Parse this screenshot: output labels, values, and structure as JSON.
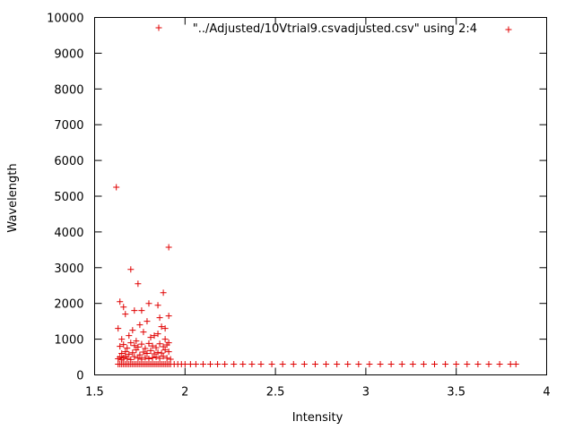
{
  "chart_data": {
    "type": "scatter",
    "title": "",
    "xlabel": "Intensity",
    "ylabel": "Wavelength",
    "xlim": [
      1.5,
      4
    ],
    "ylim": [
      0,
      10000
    ],
    "x_ticks": [
      "1.5",
      "2",
      "2.5",
      "3",
      "3.5",
      "4"
    ],
    "y_ticks": [
      "0",
      "1000",
      "2000",
      "3000",
      "4000",
      "5000",
      "6000",
      "7000",
      "8000",
      "9000",
      "10000"
    ],
    "grid": false,
    "legend_position": "top-right",
    "series": [
      {
        "name": "\"../Adjusted/10Vtrial9.csvadjusted.csv\" using 2:4",
        "color": "#e00000",
        "marker": "plus",
        "x": [
          1.63,
          1.64,
          1.65,
          1.66,
          1.67,
          1.68,
          1.69,
          1.7,
          1.71,
          1.72,
          1.73,
          1.74,
          1.75,
          1.76,
          1.77,
          1.78,
          1.79,
          1.8,
          1.81,
          1.82,
          1.83,
          1.84,
          1.85,
          1.86,
          1.87,
          1.88,
          1.89,
          1.9,
          1.91,
          1.92,
          1.94,
          1.96,
          1.98,
          2.0,
          2.03,
          2.06,
          2.1,
          2.14,
          2.18,
          2.22,
          2.27,
          2.32,
          2.37,
          2.42,
          2.48,
          2.54,
          2.6,
          2.66,
          2.72,
          2.78,
          2.84,
          2.9,
          2.96,
          3.02,
          3.08,
          3.14,
          3.2,
          3.26,
          3.32,
          3.38,
          3.44,
          3.5,
          3.56,
          3.62,
          3.68,
          3.74,
          3.8,
          3.83,
          1.63,
          1.64,
          1.65,
          1.66,
          1.67,
          1.68,
          1.7,
          1.72,
          1.74,
          1.76,
          1.78,
          1.8,
          1.82,
          1.84,
          1.86,
          1.88,
          1.9,
          1.92,
          1.65,
          1.67,
          1.69,
          1.71,
          1.73,
          1.75,
          1.77,
          1.79,
          1.81,
          1.83,
          1.85,
          1.87,
          1.89,
          1.91,
          1.64,
          1.66,
          1.68,
          1.7,
          1.72,
          1.74,
          1.76,
          1.78,
          1.8,
          1.82,
          1.84,
          1.86,
          1.88,
          1.9,
          1.65,
          1.69,
          1.73,
          1.77,
          1.81,
          1.85,
          1.89,
          1.91,
          1.63,
          1.71,
          1.75,
          1.83,
          1.87,
          1.67,
          1.79,
          1.86,
          1.89,
          1.91,
          1.64,
          1.66,
          1.72,
          1.74,
          1.85,
          1.76,
          1.8,
          1.88,
          1.7,
          1.62,
          1.91
        ],
        "y": [
          300,
          300,
          300,
          300,
          300,
          300,
          300,
          300,
          300,
          300,
          300,
          300,
          300,
          300,
          300,
          300,
          300,
          300,
          300,
          300,
          300,
          300,
          300,
          300,
          300,
          300,
          300,
          300,
          300,
          300,
          300,
          300,
          300,
          300,
          300,
          300,
          300,
          300,
          300,
          300,
          300,
          300,
          300,
          300,
          300,
          300,
          300,
          300,
          300,
          300,
          300,
          300,
          300,
          300,
          300,
          300,
          300,
          300,
          300,
          300,
          300,
          300,
          300,
          300,
          300,
          300,
          300,
          300,
          450,
          500,
          420,
          480,
          520,
          460,
          430,
          510,
          470,
          440,
          490,
          450,
          480,
          500,
          460,
          520,
          470,
          440,
          600,
          650,
          580,
          620,
          700,
          560,
          640,
          600,
          680,
          590,
          630,
          610,
          700,
          650,
          800,
          850,
          750,
          900,
          820,
          780,
          860,
          740,
          880,
          810,
          760,
          870,
          790,
          840,
          1000,
          1100,
          950,
          1200,
          1050,
          1150,
          1000,
          900,
          1300,
          1250,
          1400,
          1100,
          1350,
          1700,
          1500,
          1600,
          1300,
          1650,
          2050,
          1900,
          1800,
          2550,
          1950,
          1800,
          2000,
          2300,
          2950,
          5250,
          3570
        ]
      }
    ]
  }
}
